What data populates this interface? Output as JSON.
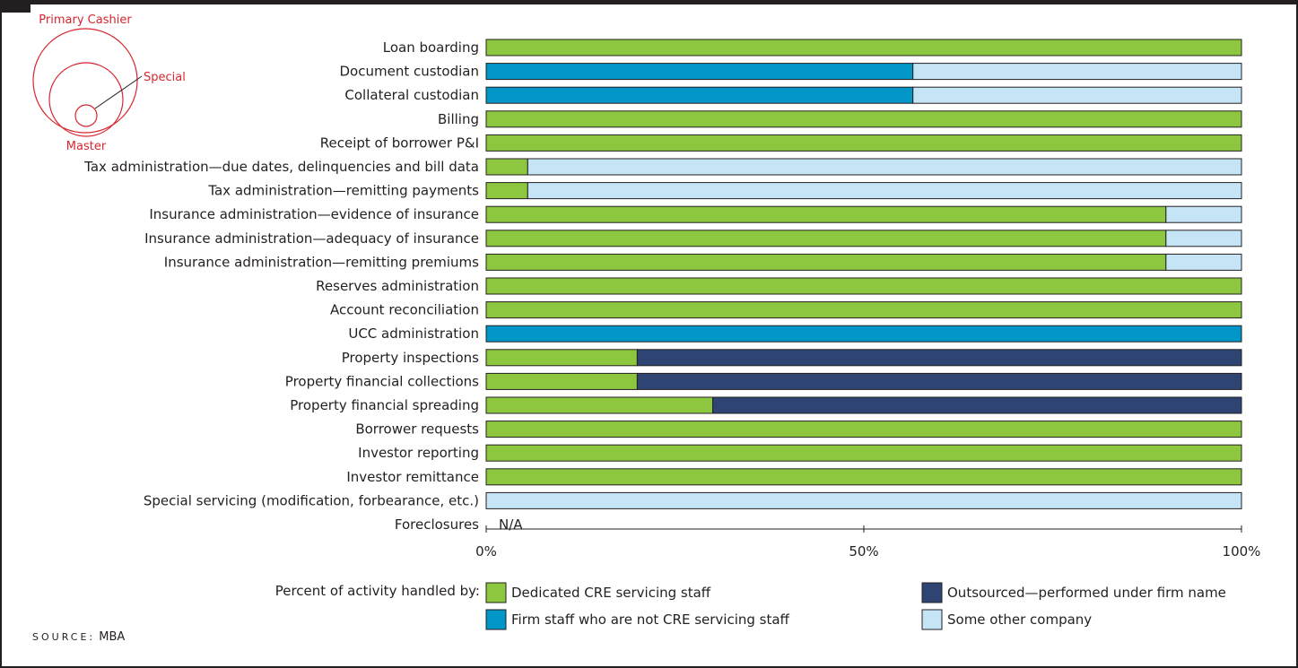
{
  "chart_data": {
    "type": "bar",
    "stacked": true,
    "orientation": "horizontal",
    "categories": [
      "Loan boarding",
      "Document custodian",
      "Collateral custodian",
      "Billing",
      "Receipt of borrower P&I",
      "Tax administration—due dates, delinquencies and bill data",
      "Tax administration—remitting payments",
      "Insurance administration—evidence of insurance",
      "Insurance administration—adequacy of insurance",
      "Insurance administration—remitting premiums",
      "Reserves administration",
      "Account reconciliation",
      "UCC administration",
      "Property inspections",
      "Property financial collections",
      "Property financial spreading",
      "Borrower requests",
      "Investor reporting",
      "Investor remittance",
      "Special servicing (modification, forbearance, etc.)",
      "Foreclosures"
    ],
    "series": [
      {
        "name": "Dedicated CRE servicing staff",
        "color": "#8dc63f",
        "values": [
          100,
          0,
          0,
          100,
          100,
          5.5,
          5.5,
          90,
          90,
          90,
          100,
          100,
          0,
          20,
          20,
          30,
          100,
          100,
          100,
          0,
          null
        ]
      },
      {
        "name": "Firm staff who are not CRE servicing staff",
        "color": "#0096c8",
        "values": [
          0,
          56.5,
          56.5,
          0,
          0,
          0,
          0,
          0,
          0,
          0,
          0,
          0,
          100,
          0,
          0,
          0,
          0,
          0,
          0,
          0,
          null
        ]
      },
      {
        "name": "Outsourced—performed under firm name",
        "color": "#2e4573",
        "values": [
          0,
          0,
          0,
          0,
          0,
          0,
          0,
          0,
          0,
          0,
          0,
          0,
          0,
          80,
          80,
          70,
          0,
          0,
          0,
          0,
          null
        ]
      },
      {
        "name": "Some other company",
        "color": "#c5e5f7",
        "values": [
          0,
          43.5,
          43.5,
          0,
          0,
          94.5,
          94.5,
          10,
          10,
          10,
          0,
          0,
          0,
          0,
          0,
          0,
          0,
          0,
          0,
          100,
          null
        ]
      }
    ],
    "na_label": "N/A",
    "x_ticks": [
      "0%",
      "50%",
      "100%"
    ],
    "xlim": [
      0,
      100
    ],
    "legend_title": "Percent of activity handled by:",
    "legend_position": "bottom"
  },
  "diagram": {
    "primary_label": "Primary Cashier",
    "special_label": "Special",
    "master_label": "Master",
    "color": "#d7262f"
  },
  "source": {
    "label": "SOURCE:",
    "value": "MBA"
  }
}
